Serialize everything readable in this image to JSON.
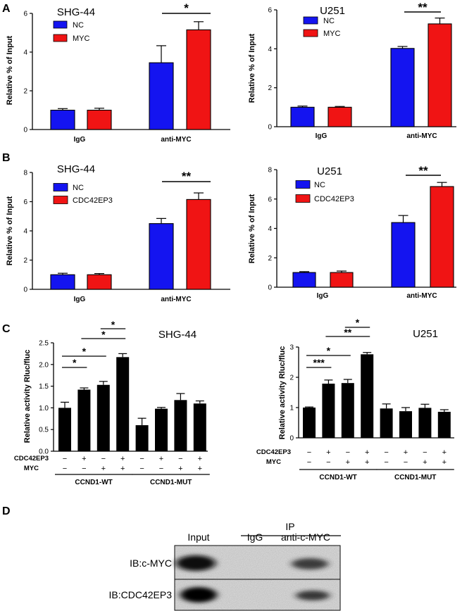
{
  "panel_labels": [
    "A",
    "B",
    "C",
    "D"
  ],
  "colors": {
    "nc": "#1414f0",
    "treat": "#f01414",
    "bar_black": "#000000",
    "axis": "#000000"
  },
  "chart_data": [
    {
      "id": "A1",
      "type": "bar",
      "title": "SHG-44",
      "ylabel": "Relative % of Input",
      "ylim": [
        0,
        6
      ],
      "yticks": [
        0,
        2,
        4,
        6
      ],
      "categories": [
        "IgG",
        "anti-MYC"
      ],
      "legend_position": "top-left",
      "series": [
        {
          "name": "NC",
          "color": "#1414f0",
          "values": [
            1.0,
            3.45
          ],
          "errors": [
            0.08,
            0.88
          ]
        },
        {
          "name": "MYC",
          "color": "#f01414",
          "values": [
            1.0,
            5.15
          ],
          "errors": [
            0.1,
            0.42
          ]
        }
      ],
      "significance": [
        {
          "category": "anti-MYC",
          "label": "*"
        }
      ]
    },
    {
      "id": "A2",
      "type": "bar",
      "title": "U251",
      "ylabel": "Relative % of Input",
      "ylim": [
        0,
        6
      ],
      "yticks": [
        0,
        2,
        4,
        6
      ],
      "categories": [
        "IgG",
        "anti-MYC"
      ],
      "legend_position": "top-left",
      "series": [
        {
          "name": "NC",
          "color": "#1414f0",
          "values": [
            1.0,
            4.02
          ],
          "errors": [
            0.06,
            0.1
          ]
        },
        {
          "name": "MYC",
          "color": "#f01414",
          "values": [
            1.0,
            5.28
          ],
          "errors": [
            0.04,
            0.3
          ]
        }
      ],
      "significance": [
        {
          "category": "anti-MYC",
          "label": "**"
        }
      ]
    },
    {
      "id": "B1",
      "type": "bar",
      "title": "SHG-44",
      "ylabel": "Relative % of Input",
      "ylim": [
        0,
        8
      ],
      "yticks": [
        0,
        2,
        4,
        6,
        8
      ],
      "categories": [
        "IgG",
        "anti-MYC"
      ],
      "legend_position": "top-left",
      "series": [
        {
          "name": "NC",
          "color": "#1414f0",
          "values": [
            1.0,
            4.5
          ],
          "errors": [
            0.1,
            0.35
          ]
        },
        {
          "name": "CDC42EP3",
          "color": "#f01414",
          "values": [
            1.0,
            6.15
          ],
          "errors": [
            0.08,
            0.45
          ]
        }
      ],
      "significance": [
        {
          "category": "anti-MYC",
          "label": "**"
        }
      ]
    },
    {
      "id": "B2",
      "type": "bar",
      "title": "U251",
      "ylabel": "Relative % of Input",
      "ylim": [
        0,
        8
      ],
      "yticks": [
        0,
        2,
        4,
        6,
        8
      ],
      "categories": [
        "IgG",
        "anti-MYC"
      ],
      "legend_position": "top-left",
      "series": [
        {
          "name": "NC",
          "color": "#1414f0",
          "values": [
            1.0,
            4.4
          ],
          "errors": [
            0.06,
            0.48
          ]
        },
        {
          "name": "CDC42EP3",
          "color": "#f01414",
          "values": [
            1.0,
            6.85
          ],
          "errors": [
            0.1,
            0.28
          ]
        }
      ],
      "significance": [
        {
          "category": "anti-MYC",
          "label": "**"
        }
      ]
    },
    {
      "id": "C1",
      "type": "bar",
      "title": "SHG-44",
      "ylabel": "Relative activity Rluc/fluc",
      "ylim": [
        0,
        2.5
      ],
      "yticks": [
        "0.0",
        "0.5",
        "1.0",
        "1.5",
        "2.0",
        "2.5"
      ],
      "values": [
        1.0,
        1.42,
        1.53,
        2.17,
        0.6,
        0.98,
        1.18,
        1.1
      ],
      "errors": [
        0.13,
        0.04,
        0.08,
        0.08,
        0.16,
        0.03,
        0.15,
        0.06
      ],
      "row_labels": [
        "CDC42EP3",
        "MYC"
      ],
      "conditions": [
        [
          "−",
          "+",
          "−",
          "+",
          "−",
          "+",
          "−",
          "+"
        ],
        [
          "−",
          "−",
          "+",
          "+",
          "−",
          "−",
          "+",
          "+"
        ]
      ],
      "groups": [
        "CCND1-WT",
        "CCND1-MUT"
      ],
      "comparisons": [
        {
          "from": 0,
          "to": 1,
          "label": "*"
        },
        {
          "from": 0,
          "to": 2,
          "label": "*"
        },
        {
          "from": 1,
          "to": 3,
          "label": "*"
        },
        {
          "from": 2,
          "to": 3,
          "label": "*"
        }
      ]
    },
    {
      "id": "C2",
      "type": "bar",
      "title": "U251",
      "ylabel": "Relative activity Rluc/fluc",
      "ylim": [
        0,
        3
      ],
      "yticks": [
        "0",
        "1",
        "2",
        "3"
      ],
      "values": [
        1.0,
        1.79,
        1.81,
        2.76,
        0.97,
        0.88,
        0.99,
        0.86
      ],
      "errors": [
        0.02,
        0.12,
        0.12,
        0.06,
        0.15,
        0.12,
        0.12,
        0.07
      ],
      "row_labels": [
        "CDC42EP3",
        "MYC"
      ],
      "conditions": [
        [
          "−",
          "+",
          "−",
          "+",
          "−",
          "+",
          "−",
          "+"
        ],
        [
          "−",
          "−",
          "+",
          "+",
          "−",
          "−",
          "+",
          "+"
        ]
      ],
      "groups": [
        "CCND1-WT",
        "CCND1-MUT"
      ],
      "comparisons": [
        {
          "from": 0,
          "to": 1,
          "label": "***"
        },
        {
          "from": 0,
          "to": 2,
          "label": "*"
        },
        {
          "from": 1,
          "to": 3,
          "label": "**"
        },
        {
          "from": 2,
          "to": 3,
          "label": "*"
        }
      ]
    }
  ],
  "blot": {
    "header": "IP",
    "lanes": [
      "Input",
      "IgG",
      "anti-c-MYC"
    ],
    "rows": [
      {
        "label": "IB:c-MYC",
        "band_intensity": [
          1.0,
          0.0,
          0.7
        ]
      },
      {
        "label": "IB:CDC42EP3",
        "band_intensity": [
          1.0,
          0.0,
          0.8
        ]
      }
    ]
  }
}
